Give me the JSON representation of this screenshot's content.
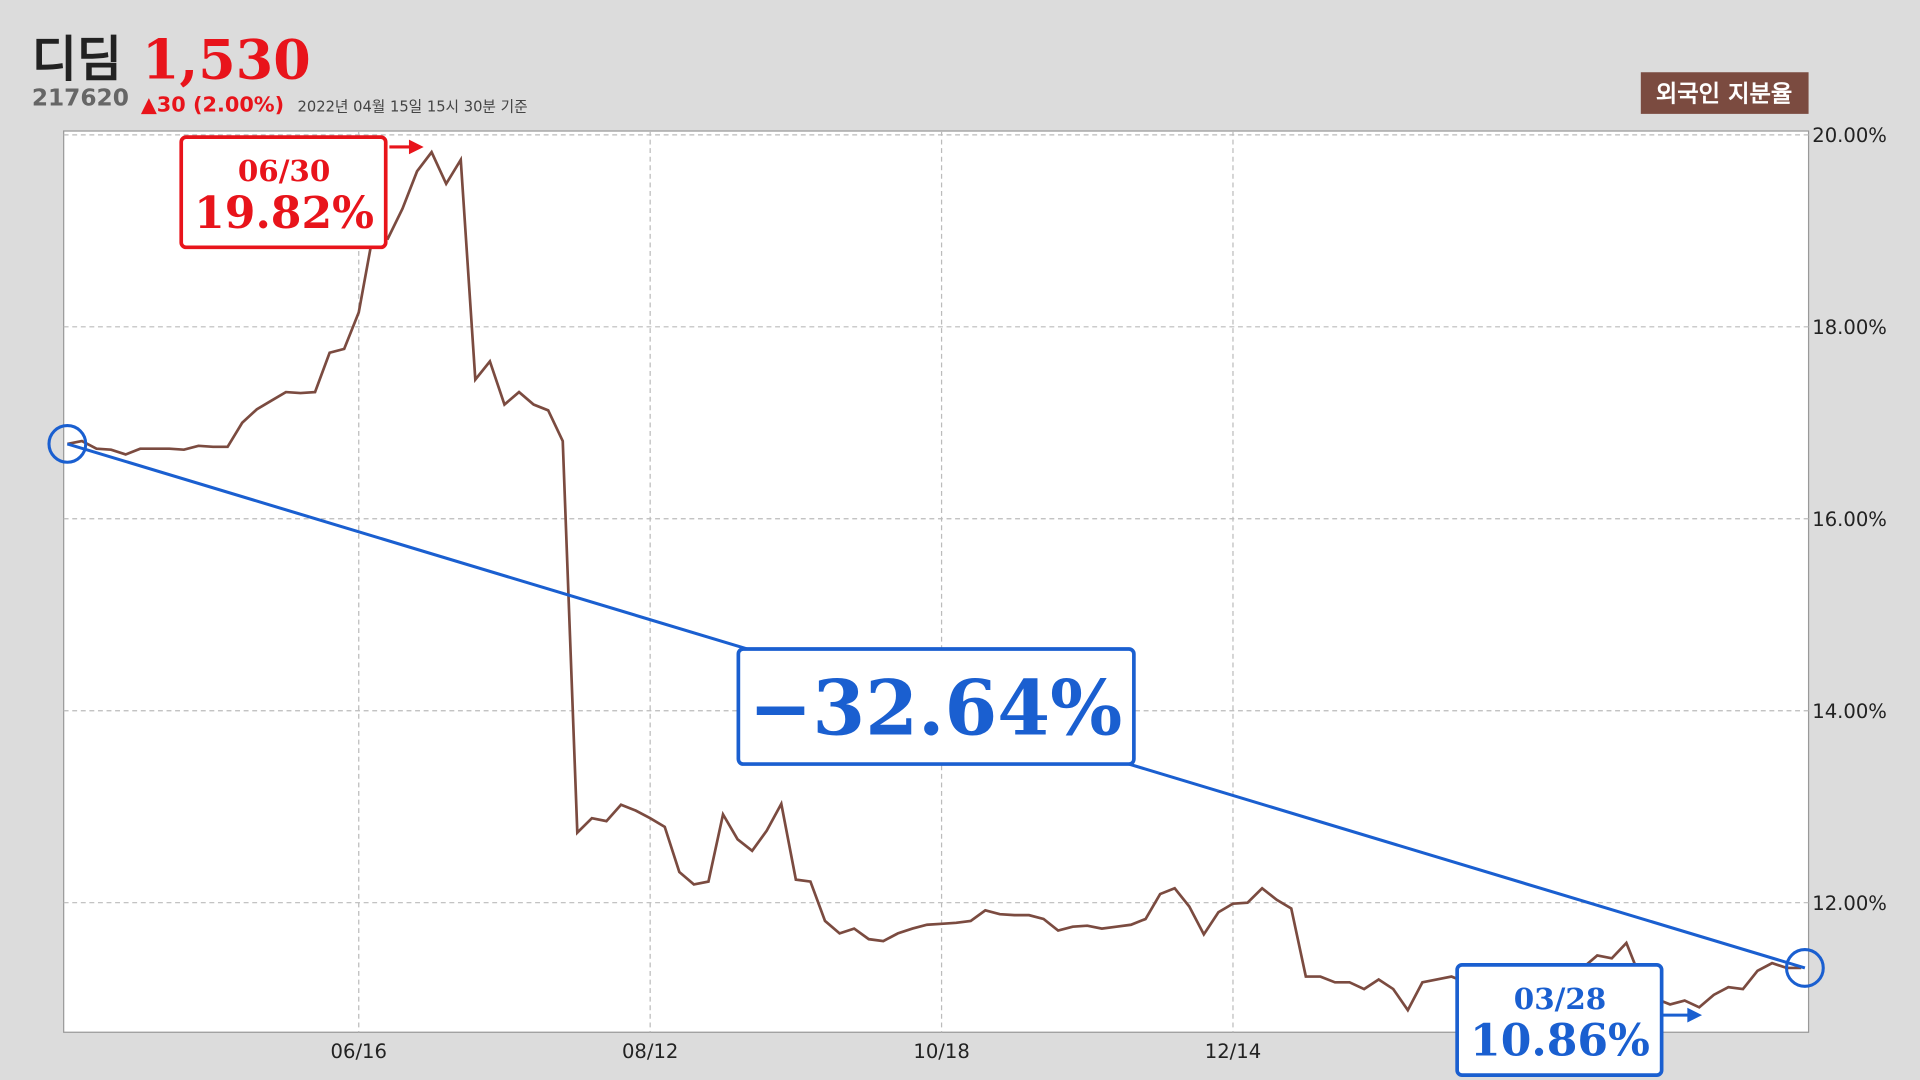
{
  "header": {
    "name": "디딤",
    "price": "1,530",
    "code": "217620",
    "change": "▲30 (2.00%)",
    "timestamp": "2022년 04월 15일 15시 30분 기준",
    "badge": "외국인 지분율"
  },
  "chart_data": {
    "type": "line",
    "categories": [
      null,
      null,
      null,
      null,
      null,
      null,
      null,
      null,
      null,
      null,
      null,
      null,
      null,
      null,
      null,
      null,
      null,
      null,
      null,
      null,
      "06/16",
      null,
      null,
      null,
      null,
      null,
      null,
      null,
      null,
      null,
      null,
      null,
      null,
      null,
      null,
      null,
      null,
      null,
      null,
      null,
      "08/12",
      null,
      null,
      null,
      null,
      null,
      null,
      null,
      null,
      null,
      null,
      null,
      null,
      null,
      null,
      null,
      null,
      null,
      null,
      null,
      "10/18",
      null,
      null,
      null,
      null,
      null,
      null,
      null,
      null,
      null,
      null,
      null,
      null,
      null,
      null,
      null,
      null,
      null,
      null,
      null,
      "12/14",
      null,
      null,
      null,
      null,
      null,
      null,
      null,
      null,
      null,
      null,
      null,
      null,
      null,
      null,
      null,
      null,
      null,
      null,
      null,
      null,
      null,
      null,
      null,
      null,
      null,
      null,
      null,
      null,
      null,
      null,
      null,
      null,
      null,
      null,
      null,
      null,
      null,
      null,
      null
    ],
    "series": [
      {
        "name": "외국인 지분율",
        "color": "#7b4b40",
        "values": [
          16.78,
          16.81,
          16.73,
          16.72,
          16.67,
          16.73,
          16.73,
          16.73,
          16.72,
          16.76,
          16.75,
          16.75,
          17.0,
          17.14,
          17.23,
          17.32,
          17.31,
          17.32,
          17.73,
          17.77,
          18.15,
          18.98,
          18.92,
          19.23,
          19.62,
          19.82,
          19.49,
          19.74,
          17.45,
          17.64,
          17.19,
          17.32,
          17.19,
          17.13,
          16.81,
          12.73,
          12.88,
          12.85,
          13.02,
          12.96,
          12.88,
          12.79,
          12.32,
          12.19,
          12.22,
          12.92,
          12.66,
          12.54,
          12.75,
          13.03,
          12.24,
          12.22,
          11.81,
          11.68,
          11.73,
          11.62,
          11.6,
          11.68,
          11.73,
          11.77,
          11.78,
          11.79,
          11.81,
          11.92,
          11.88,
          11.87,
          11.87,
          11.83,
          11.71,
          11.75,
          11.76,
          11.73,
          11.75,
          11.77,
          11.83,
          12.09,
          12.15,
          11.96,
          11.67,
          11.9,
          11.99,
          12.0,
          12.15,
          12.03,
          11.94,
          11.23,
          11.23,
          11.17,
          11.17,
          11.1,
          11.2,
          11.1,
          10.88,
          11.17,
          11.2,
          11.23,
          11.17,
          11.2,
          11.17,
          11.2,
          11.23,
          11.26,
          11.2,
          11.13,
          11.32,
          11.45,
          11.42,
          11.58,
          11.2,
          11.0,
          10.94,
          10.98,
          10.91,
          11.04,
          11.12,
          11.1,
          11.29,
          11.37,
          11.32,
          11.32
        ]
      }
    ],
    "ylim": [
      10.65,
      20.04
    ],
    "yticks": [
      {
        "value": 12,
        "label": "12.00%"
      },
      {
        "value": 14,
        "label": "14.00%"
      },
      {
        "value": 16,
        "label": "16.00%"
      },
      {
        "value": 18,
        "label": "18.00%"
      },
      {
        "value": 20,
        "label": "20.00%"
      }
    ],
    "grid": true,
    "annotations": [
      {
        "date": "06/30",
        "label": "19.82%",
        "color": "#e8141b"
      },
      {
        "date": "03/28",
        "label": "10.86%",
        "color": "#1a5fd0"
      }
    ],
    "change_label": "−32.64%",
    "trend_color": "#1a5fd0"
  }
}
